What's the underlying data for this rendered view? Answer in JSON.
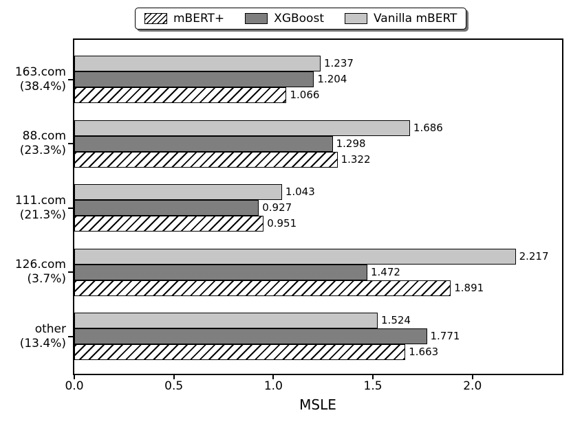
{
  "chart_data": {
    "type": "bar",
    "orientation": "horizontal",
    "title": "",
    "xlabel": "MSLE",
    "ylabel": "",
    "xlim": [
      0,
      2.45
    ],
    "xticks": [
      0.0,
      0.5,
      1.0,
      1.5,
      2.0
    ],
    "xtick_labels": [
      "0.0",
      "0.5",
      "1.0",
      "1.5",
      "2.0"
    ],
    "grid": false,
    "legend_position": "top-center",
    "value_label_decimals": 3,
    "categories": [
      "163.com",
      "88.com",
      "111.com",
      "126.com",
      "other"
    ],
    "category_sublabels": [
      "(38.4%)",
      "(23.3%)",
      "(21.3%)",
      "(3.7%)",
      "(13.4%)"
    ],
    "series": [
      {
        "name": "mBERT+",
        "style": "hatched",
        "fill": "#ffffff",
        "hatch": "forward-diagonal",
        "values": [
          1.066,
          1.322,
          0.951,
          1.891,
          1.663
        ]
      },
      {
        "name": "XGBoost",
        "style": "dark",
        "fill": "#7f7f7f",
        "values": [
          1.204,
          1.298,
          0.927,
          1.472,
          1.771
        ]
      },
      {
        "name": "Vanilla mBERT",
        "style": "light",
        "fill": "#c6c6c6",
        "values": [
          1.237,
          1.686,
          1.043,
          2.217,
          1.524
        ]
      }
    ],
    "colors": {
      "edge": "#000000",
      "xgboost_fill": "#7f7f7f",
      "vanilla_fill": "#c6c6c6",
      "hatch_fill": "#ffffff"
    }
  }
}
